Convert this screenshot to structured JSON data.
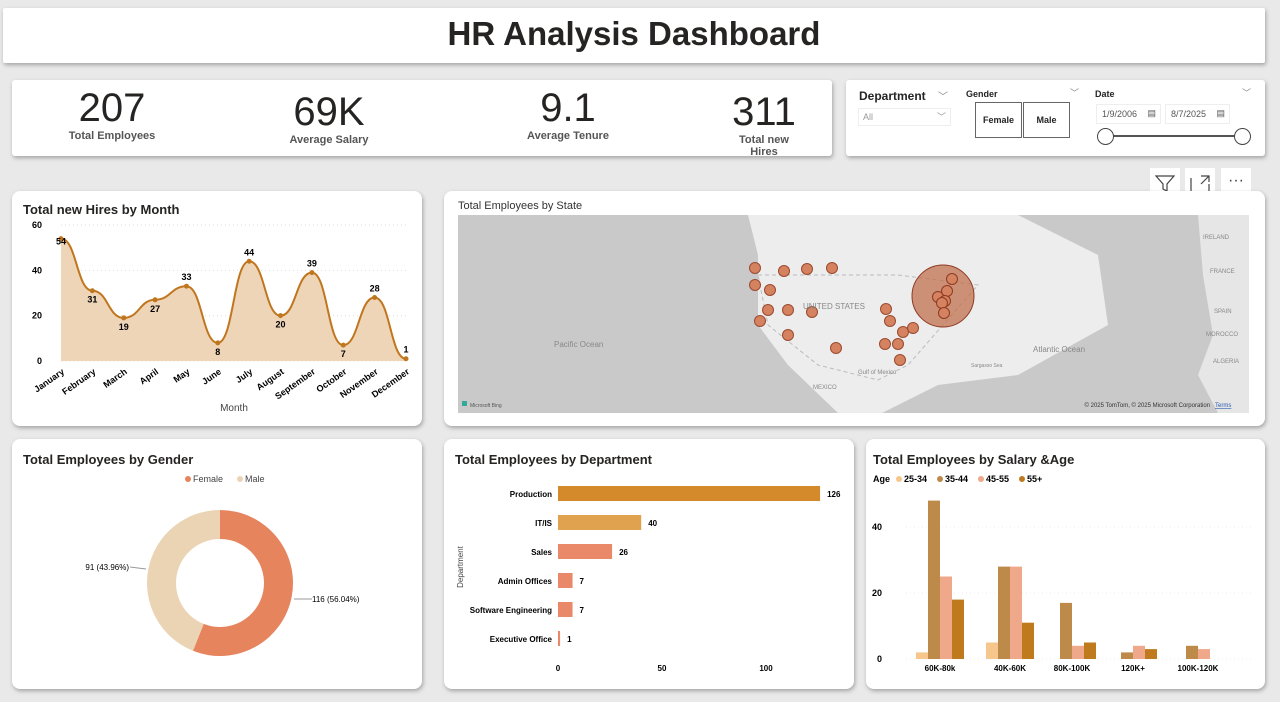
{
  "header": {
    "title": "HR Analysis Dashboard"
  },
  "kpis": [
    {
      "value": "207",
      "label": "Total Employees"
    },
    {
      "value": "69K",
      "label": "Average Salary"
    },
    {
      "value": "9.1",
      "label": "Average Tenure"
    },
    {
      "value": "311",
      "label": "Total new Hires"
    }
  ],
  "slicers": {
    "department": {
      "label": "Department",
      "value": "All"
    },
    "gender": {
      "label": "Gender",
      "options": [
        "Female",
        "Male"
      ]
    },
    "date": {
      "label": "Date",
      "start": "1/9/2006",
      "end": "8/7/2025"
    }
  },
  "toolbar": {
    "icons": [
      "filter-icon",
      "focus-mode-icon",
      "more-options-icon"
    ]
  },
  "colors": {
    "accent": "#C0761E",
    "female": "#E6845E",
    "male": "#EBD4B4",
    "fill": "#EFD5B8"
  },
  "chart_data": [
    {
      "type": "area",
      "title": "Total new Hires by Month",
      "xlabel": "Month",
      "ylabel": "",
      "ylim": [
        0,
        60
      ],
      "yticks": [
        "0",
        "20",
        "40",
        "60"
      ],
      "categories": [
        "January",
        "February",
        "March",
        "April",
        "May",
        "June",
        "July",
        "August",
        "September",
        "October",
        "November",
        "December"
      ],
      "values": [
        54,
        31,
        19,
        27,
        33,
        8,
        44,
        20,
        39,
        7,
        28,
        1
      ]
    },
    {
      "type": "map",
      "title": "Total Employees by State",
      "labels": {
        "country": "UNITED STATES",
        "pacific": "Pacific Ocean",
        "atlantic": "Atlantic Ocean",
        "gulf": "Gulf of Mexico",
        "mexico": "MEXICO",
        "france": "FRANCE",
        "spain": "SPAIN",
        "ireland": "IRELAND",
        "algeria": "ALGERIA",
        "morocco": "MOROCCO",
        "sargasso": "Sargasso Sea",
        "bing": "Microsoft Bing",
        "copyright": "© 2025 TomTom, © 2025 Microsoft Corporation",
        "terms": "Terms"
      }
    },
    {
      "type": "pie",
      "title": "Total Employees by Gender",
      "legend_position": "top",
      "series": [
        {
          "name": "Female",
          "value": 116,
          "label": "116 (56.04%)"
        },
        {
          "name": "Male",
          "value": 91,
          "label": "91 (43.96%)"
        }
      ]
    },
    {
      "type": "bar",
      "title": "Total Employees by Department",
      "ylabel": "Department",
      "orientation": "horizontal",
      "categories": [
        "Production",
        "IT/IS",
        "Sales",
        "Admin Offices",
        "Software Engineering",
        "Executive Office"
      ],
      "values": [
        126,
        40,
        26,
        7,
        7,
        1
      ],
      "xticks": [
        "0",
        "50",
        "100"
      ],
      "xlim": [
        0,
        130
      ]
    },
    {
      "type": "bar",
      "title": "Total Employees by Salary &Age",
      "legend_title": "Age",
      "legend_position": "top-left",
      "categories": [
        "60K-80k",
        "40K-60K",
        "80K-100K",
        "120K+",
        "100K-120K"
      ],
      "yticks": [
        "0",
        "20",
        "40"
      ],
      "ylim": [
        0,
        50
      ],
      "series": [
        {
          "name": "25-34",
          "color": "#F6C68C",
          "values": [
            2,
            5,
            0,
            0,
            0
          ]
        },
        {
          "name": "35-44",
          "color": "#BE8A49",
          "values": [
            48,
            28,
            17,
            2,
            4
          ]
        },
        {
          "name": "45-55",
          "color": "#EFA88A",
          "values": [
            25,
            28,
            4,
            4,
            3
          ]
        },
        {
          "name": "55+",
          "color": "#C07A1E",
          "values": [
            18,
            11,
            5,
            3,
            0
          ]
        }
      ]
    }
  ]
}
